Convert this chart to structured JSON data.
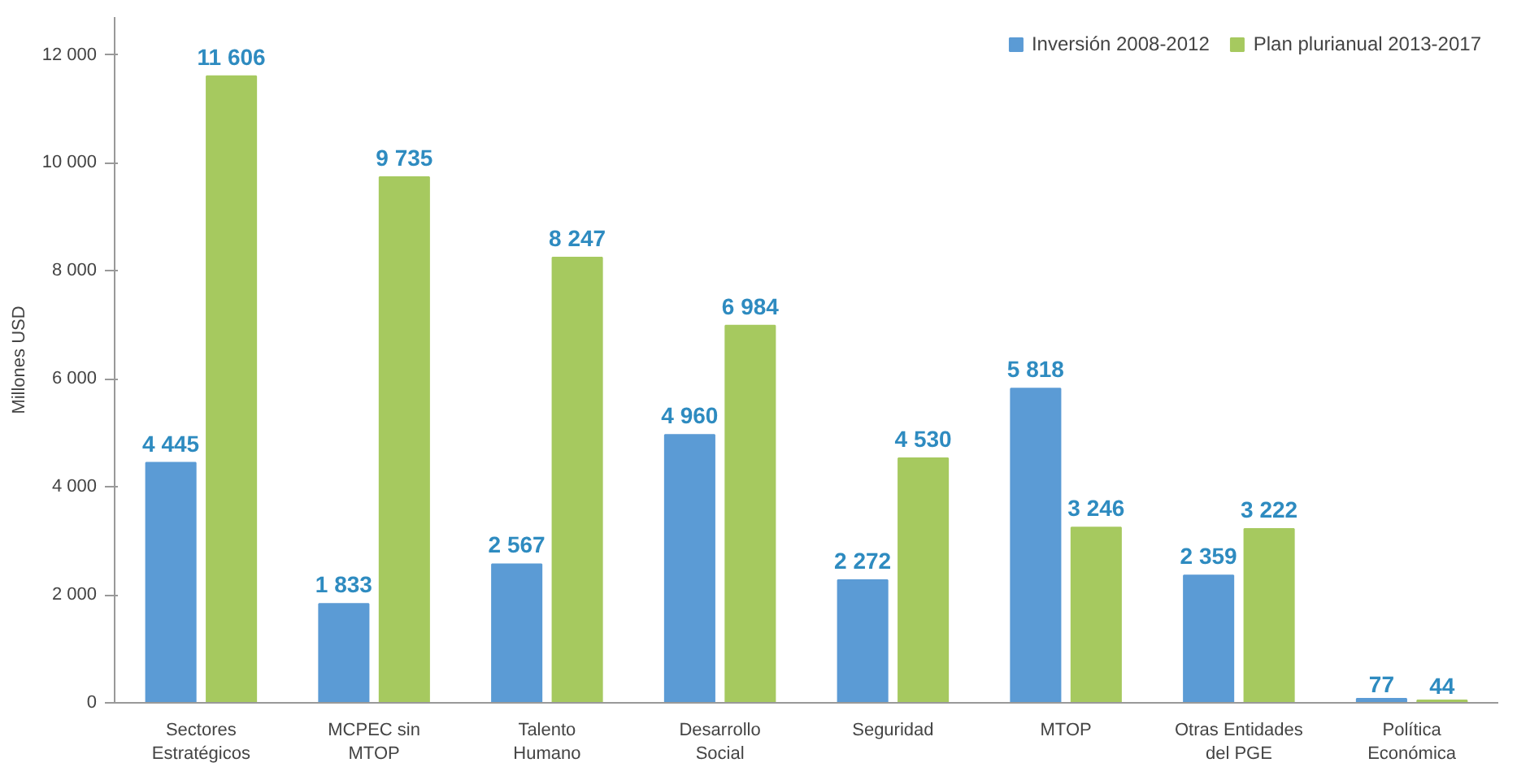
{
  "chart_data": {
    "type": "bar",
    "ylabel": "Millones USD",
    "categories": [
      "Sectores\nEstratégicos",
      "MCPEC sin\nMTOP",
      "Talento\nHumano",
      "Desarrollo\nSocial",
      "Seguridad",
      "MTOP",
      "Otras Entidades\ndel PGE",
      "Política\nEconómica"
    ],
    "series": [
      {
        "name": "Inversión 2008-2012",
        "color": "#5b9bd5",
        "values": [
          4445,
          1833,
          2567,
          4960,
          2272,
          5818,
          2359,
          77
        ],
        "value_labels": [
          "4 445",
          "1 833",
          "2 567",
          "4 960",
          "2 272",
          "5 818",
          "2 359",
          "77"
        ]
      },
      {
        "name": "Plan plurianual 2013-2017",
        "color": "#a6c95f",
        "values": [
          11606,
          9735,
          8247,
          6984,
          4530,
          3246,
          3222,
          44
        ],
        "value_labels": [
          "11 606",
          "9 735",
          "8 247",
          "6 984",
          "4 530",
          "3 246",
          "3 222",
          "44"
        ]
      }
    ],
    "ylim": [
      0,
      12700
    ],
    "yticks": [
      0,
      {
        "value": 2000,
        "label": "2 000"
      },
      {
        "value": 4000,
        "label": "4 000"
      },
      {
        "value": 6000,
        "label": "6 000"
      },
      {
        "value": 8000,
        "label": "8 000"
      },
      {
        "value": 10000,
        "label": "10 000"
      },
      {
        "value": 12000,
        "label": "12 000"
      }
    ],
    "grid": false,
    "legend": "top right"
  }
}
